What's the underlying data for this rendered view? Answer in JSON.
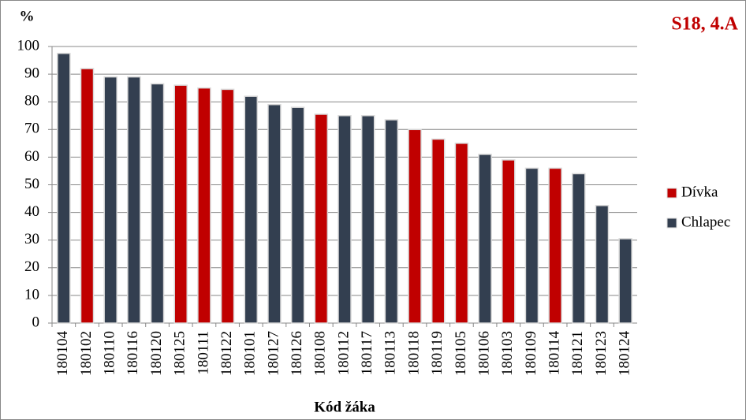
{
  "chart_data": {
    "type": "bar",
    "title": "S18, 4.A",
    "y_label": "%",
    "x_label": "Kód žáka",
    "categories": [
      "180104",
      "180102",
      "180110",
      "180116",
      "180120",
      "180125",
      "180111",
      "180122",
      "180101",
      "180127",
      "180126",
      "180108",
      "180112",
      "180117",
      "180113",
      "180118",
      "180119",
      "180105",
      "180106",
      "180103",
      "180109",
      "180114",
      "180121",
      "180123",
      "180124"
    ],
    "series": [
      {
        "name": "Dívka",
        "color": "#c00000",
        "values": [
          null,
          92,
          null,
          null,
          null,
          86,
          85,
          84.5,
          null,
          null,
          null,
          75.5,
          null,
          null,
          null,
          70,
          66.5,
          65,
          null,
          59,
          null,
          56,
          null,
          null,
          null
        ]
      },
      {
        "name": "Chlapec",
        "color": "#333f50",
        "values": [
          97.5,
          null,
          89,
          89,
          86.5,
          null,
          null,
          null,
          82,
          79,
          78,
          null,
          75,
          75,
          73.5,
          null,
          null,
          null,
          61,
          null,
          56,
          null,
          54,
          42.5,
          30.5
        ]
      }
    ],
    "ylim": [
      0,
      100
    ],
    "yticks": [
      0,
      10,
      20,
      30,
      40,
      50,
      60,
      70,
      80,
      90,
      100
    ],
    "grid": true,
    "legend": "right"
  }
}
